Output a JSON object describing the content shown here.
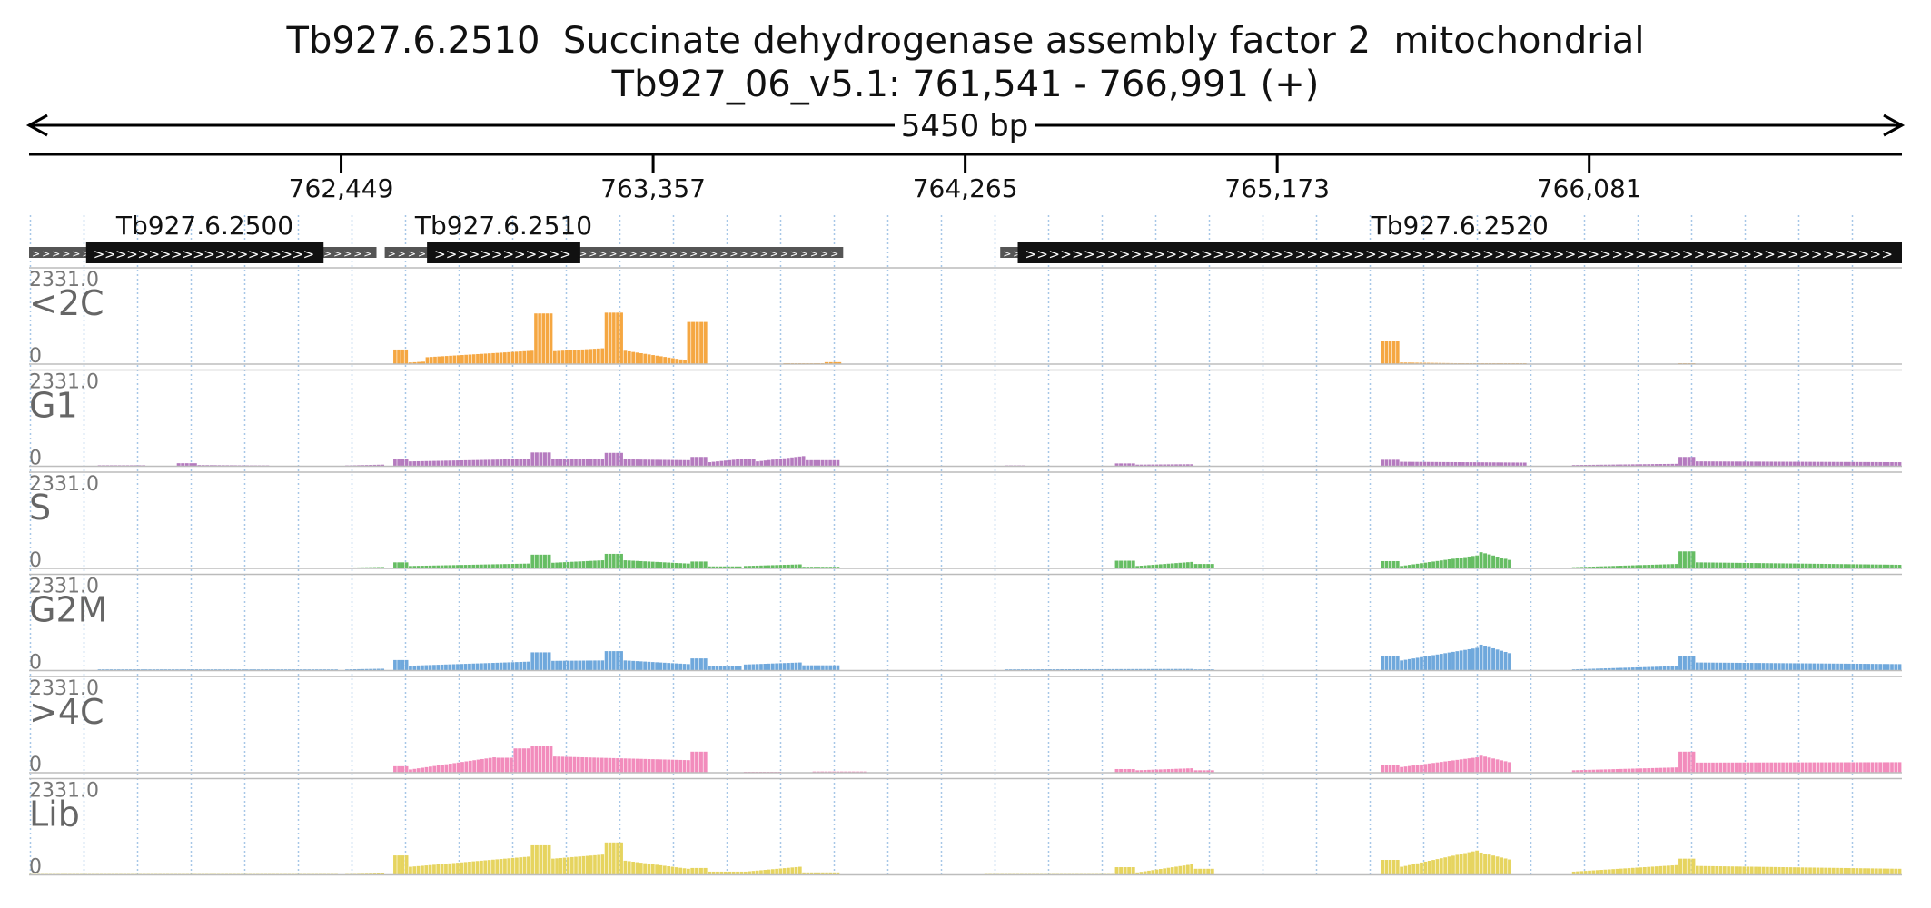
{
  "header": {
    "gene_title": "Tb927.6.2510  Succinate dehydrogenase assembly factor 2  mitochondrial",
    "locus": "Tb927_06_v5.1: 761,541 - 766,991 (+)"
  },
  "chart_data": {
    "type": "bar",
    "span_label": "5450 bp",
    "region": {
      "start": 761541,
      "end": 766991,
      "strand": "+"
    },
    "ticks": [
      {
        "pos": 762449,
        "label": "762,449"
      },
      {
        "pos": 763357,
        "label": "763,357"
      },
      {
        "pos": 764265,
        "label": "764,265"
      },
      {
        "pos": 765173,
        "label": "765,173"
      },
      {
        "pos": 766081,
        "label": "766,081"
      }
    ],
    "genes": [
      {
        "name": "Tb927.6.2500",
        "utr": [
          761541,
          762552
        ],
        "cds": [
          761707,
          762398
        ]
      },
      {
        "name": "Tb927.6.2510",
        "utr": [
          762576,
          763910
        ],
        "cds": [
          762699,
          763145
        ]
      },
      {
        "name": "Tb927.6.2520",
        "utr": [
          764367,
          766991
        ],
        "cds": [
          764418,
          766991
        ]
      }
    ],
    "ylim": [
      0,
      2331.0
    ],
    "ymax_label": "2331.0",
    "ymin_label": "0",
    "tracks": [
      {
        "name": "<2C",
        "color": "#f5a742",
        "profile": [
          [
            [
              762601,
              762645
            ],
            360,
            360
          ],
          [
            [
              762645,
              762695
            ],
            40,
            60
          ],
          [
            [
              762695,
              763011
            ],
            170,
            330
          ],
          [
            [
              763011,
              763066
            ],
            1250,
            1250
          ],
          [
            [
              763066,
              763216
            ],
            320,
            390
          ],
          [
            [
              763216,
              763271
            ],
            1270,
            1270
          ],
          [
            [
              763271,
              763456
            ],
            330,
            100
          ],
          [
            [
              763456,
              763516
            ],
            1040,
            1040
          ],
          [
            [
              763736,
              763856
            ],
            12,
            12
          ],
          [
            [
              763856,
              763906
            ],
            48,
            48
          ],
          [
            [
              765475,
              765530
            ],
            570,
            570
          ],
          [
            [
              765530,
              765900
            ],
            40,
            0
          ],
          [
            [
              766341,
              766391
            ],
            6,
            6
          ]
        ]
      },
      {
        "name": "G1",
        "color": "#b57bbf",
        "profile": [
          [
            [
              761741,
              761881
            ],
            25,
            25
          ],
          [
            [
              761971,
              762031
            ],
            75,
            75
          ],
          [
            [
              762031,
              762241
            ],
            30,
            20
          ],
          [
            [
              762461,
              762576
            ],
            20,
            40
          ],
          [
            [
              762601,
              762646
            ],
            190,
            190
          ],
          [
            [
              762646,
              763001
            ],
            120,
            180
          ],
          [
            [
              763001,
              763061
            ],
            340,
            340
          ],
          [
            [
              763061,
              763216
            ],
            170,
            190
          ],
          [
            [
              763216,
              763271
            ],
            330,
            330
          ],
          [
            [
              763271,
              763466
            ],
            170,
            150
          ],
          [
            [
              763466,
              763516
            ],
            230,
            230
          ],
          [
            [
              763516,
              763621
            ],
            100,
            180
          ],
          [
            [
              763621,
              763656
            ],
            170,
            170
          ],
          [
            [
              763656,
              763801
            ],
            120,
            250
          ],
          [
            [
              763801,
              763901
            ],
            150,
            150
          ],
          [
            [
              764381,
              764441
            ],
            6,
            6
          ],
          [
            [
              764701,
              764761
            ],
            70,
            70
          ],
          [
            [
              764761,
              764931
            ],
            40,
            50
          ],
          [
            [
              765475,
              765530
            ],
            160,
            160
          ],
          [
            [
              765530,
              765900
            ],
            110,
            90
          ],
          [
            [
              766031,
              766341
            ],
            30,
            60
          ],
          [
            [
              766341,
              766391
            ],
            230,
            230
          ],
          [
            [
              766391,
              766991
            ],
            120,
            100
          ]
        ]
      },
      {
        "name": "S",
        "color": "#66bd63",
        "profile": [
          [
            [
              761541,
              761941
            ],
            10,
            10
          ],
          [
            [
              762461,
              762576
            ],
            20,
            35
          ],
          [
            [
              762601,
              762646
            ],
            150,
            150
          ],
          [
            [
              762646,
              763001
            ],
            60,
            120
          ],
          [
            [
              763001,
              763061
            ],
            340,
            340
          ],
          [
            [
              763061,
              763216
            ],
            140,
            200
          ],
          [
            [
              763216,
              763271
            ],
            360,
            360
          ],
          [
            [
              763271,
              763466
            ],
            200,
            120
          ],
          [
            [
              763466,
              763516
            ],
            170,
            170
          ],
          [
            [
              763516,
              763616
            ],
            50,
            50
          ],
          [
            [
              763621,
              763791
            ],
            60,
            100
          ],
          [
            [
              763791,
              763901
            ],
            40,
            40
          ],
          [
            [
              764321,
              764701
            ],
            15,
            15
          ],
          [
            [
              764701,
              764761
            ],
            190,
            190
          ],
          [
            [
              764761,
              764931
            ],
            60,
            160
          ],
          [
            [
              764931,
              764991
            ],
            110,
            110
          ],
          [
            [
              765475,
              765530
            ],
            180,
            180
          ],
          [
            [
              765530,
              765761
            ],
            60,
            320
          ],
          [
            [
              765761,
              765856
            ],
            400,
            210
          ],
          [
            [
              766031,
              766341
            ],
            30,
            110
          ],
          [
            [
              766341,
              766391
            ],
            420,
            420
          ],
          [
            [
              766391,
              766991
            ],
            150,
            90
          ]
        ]
      },
      {
        "name": "G2M",
        "color": "#6fa8dc",
        "profile": [
          [
            [
              761741,
              762441
            ],
            30,
            30
          ],
          [
            [
              762461,
              762576
            ],
            30,
            45
          ],
          [
            [
              762601,
              762646
            ],
            260,
            260
          ],
          [
            [
              762646,
              763001
            ],
            120,
            220
          ],
          [
            [
              763001,
              763061
            ],
            450,
            450
          ],
          [
            [
              763061,
              763216
            ],
            240,
            250
          ],
          [
            [
              763216,
              763271
            ],
            480,
            480
          ],
          [
            [
              763271,
              763466
            ],
            250,
            160
          ],
          [
            [
              763466,
              763516
            ],
            300,
            300
          ],
          [
            [
              763516,
              763616
            ],
            120,
            120
          ],
          [
            [
              763621,
              763791
            ],
            150,
            200
          ],
          [
            [
              763791,
              763901
            ],
            130,
            130
          ],
          [
            [
              764381,
              764931
            ],
            30,
            40
          ],
          [
            [
              764931,
              764991
            ],
            30,
            30
          ],
          [
            [
              765475,
              765530
            ],
            370,
            370
          ],
          [
            [
              765530,
              765761
            ],
            250,
            560
          ],
          [
            [
              765761,
              765856
            ],
            640,
            430
          ],
          [
            [
              766031,
              766341
            ],
            30,
            110
          ],
          [
            [
              766341,
              766391
            ],
            350,
            350
          ],
          [
            [
              766391,
              766991
            ],
            200,
            160
          ]
        ]
      },
      {
        "name": ">4C",
        "color": "#f28cbc",
        "profile": [
          [
            [
              762601,
              762646
            ],
            160,
            160
          ],
          [
            [
              762646,
              762901
            ],
            80,
            380
          ],
          [
            [
              762901,
              762951
            ],
            370,
            370
          ],
          [
            [
              762951,
              763001
            ],
            600,
            600
          ],
          [
            [
              763001,
              763066
            ],
            650,
            650
          ],
          [
            [
              763066,
              763466
            ],
            400,
            310
          ],
          [
            [
              763466,
              763516
            ],
            520,
            520
          ],
          [
            [
              763621,
              763731
            ],
            10,
            10
          ],
          [
            [
              763821,
              763981
            ],
            30,
            30
          ],
          [
            [
              764701,
              764761
            ],
            90,
            90
          ],
          [
            [
              764761,
              764931
            ],
            60,
            110
          ],
          [
            [
              764931,
              764991
            ],
            60,
            60
          ],
          [
            [
              765475,
              765530
            ],
            200,
            200
          ],
          [
            [
              765530,
              765761
            ],
            140,
            380
          ],
          [
            [
              765761,
              765856
            ],
            420,
            260
          ],
          [
            [
              766031,
              766341
            ],
            60,
            130
          ],
          [
            [
              766341,
              766391
            ],
            520,
            520
          ],
          [
            [
              766391,
              766991
            ],
            250,
            260
          ]
        ]
      },
      {
        "name": "Lib",
        "color": "#e6d45f",
        "profile": [
          [
            [
              761541,
              762441
            ],
            10,
            10
          ],
          [
            [
              762461,
              762576
            ],
            20,
            35
          ],
          [
            [
              762601,
              762646
            ],
            480,
            480
          ],
          [
            [
              762646,
              763001
            ],
            200,
            450
          ],
          [
            [
              763001,
              763061
            ],
            730,
            730
          ],
          [
            [
              763061,
              763216
            ],
            400,
            500
          ],
          [
            [
              763216,
              763271
            ],
            800,
            800
          ],
          [
            [
              763271,
              763466
            ],
            350,
            150
          ],
          [
            [
              763466,
              763516
            ],
            170,
            170
          ],
          [
            [
              763516,
              763621
            ],
            80,
            80
          ],
          [
            [
              763621,
              763791
            ],
            80,
            200
          ],
          [
            [
              763791,
              763901
            ],
            60,
            60
          ],
          [
            [
              764321,
              764701
            ],
            15,
            15
          ],
          [
            [
              764701,
              764761
            ],
            190,
            190
          ],
          [
            [
              764761,
              764931
            ],
            60,
            260
          ],
          [
            [
              764931,
              764991
            ],
            150,
            150
          ],
          [
            [
              765475,
              765530
            ],
            370,
            370
          ],
          [
            [
              765530,
              765761
            ],
            200,
            600
          ],
          [
            [
              765761,
              765856
            ],
            550,
            380
          ],
          [
            [
              766031,
              766341
            ],
            80,
            240
          ],
          [
            [
              766341,
              766391
            ],
            400,
            400
          ],
          [
            [
              766391,
              766991
            ],
            220,
            150
          ]
        ]
      }
    ]
  }
}
